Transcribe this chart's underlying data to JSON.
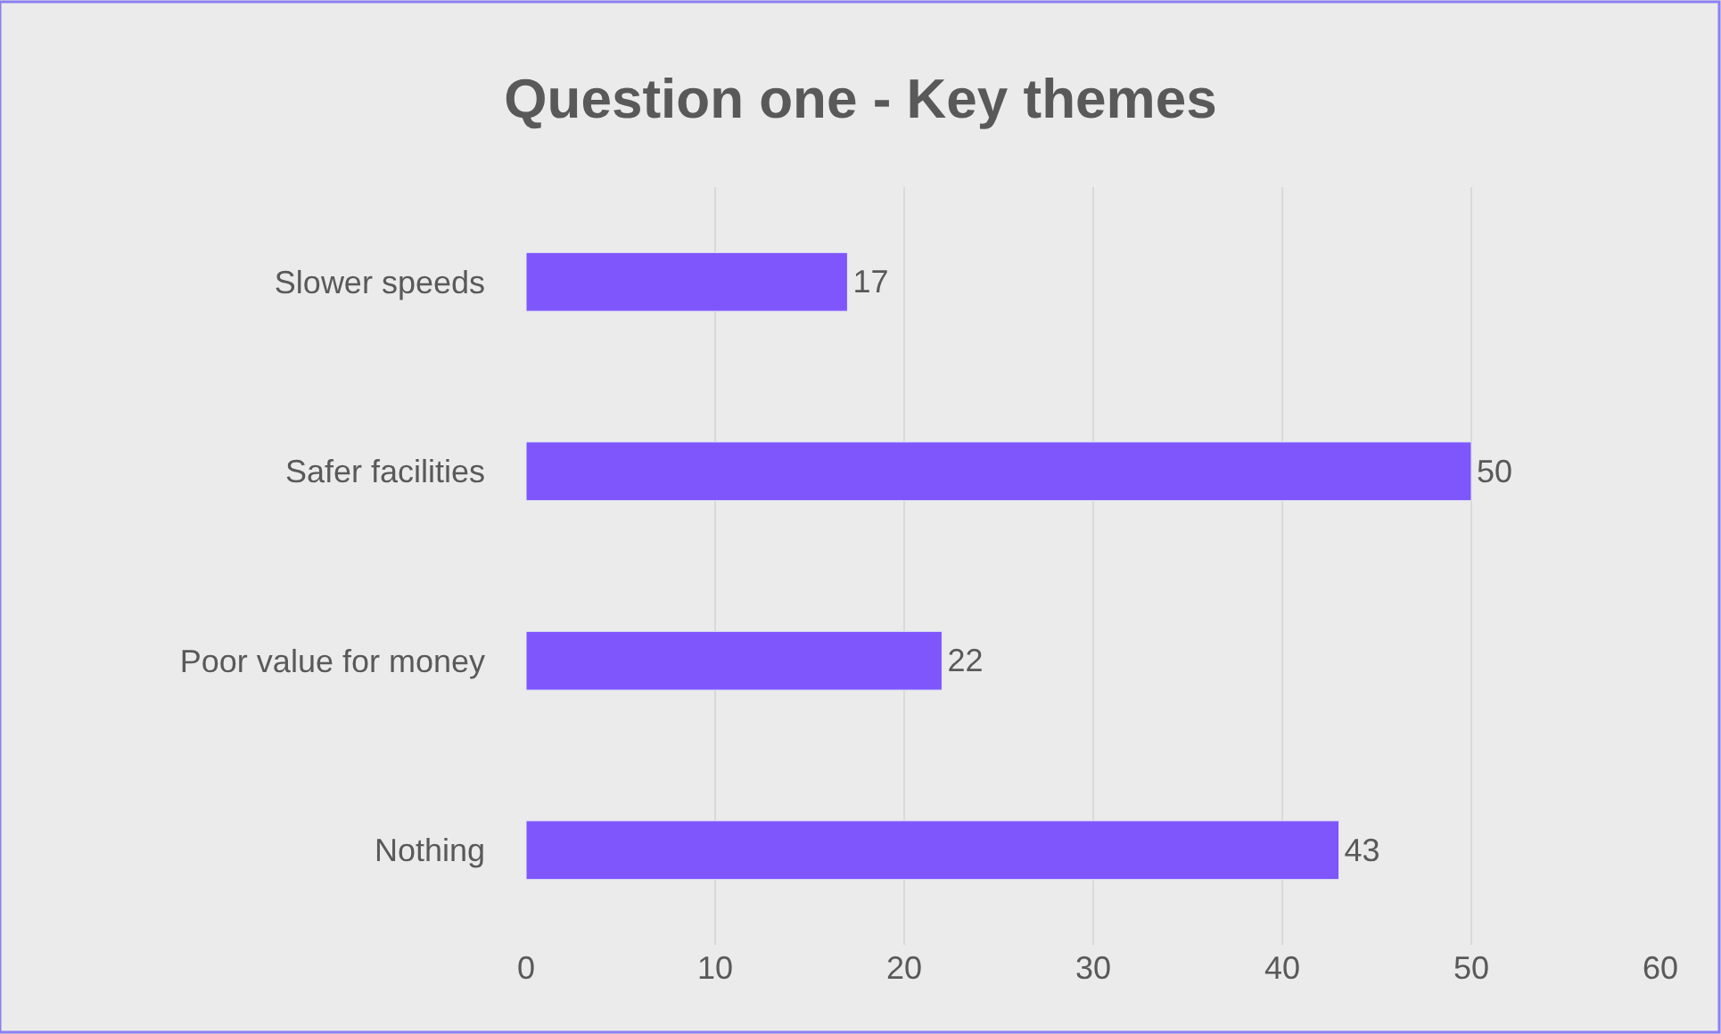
{
  "chart_data": {
    "type": "bar",
    "orientation": "horizontal",
    "title": "Question one - Key themes",
    "categories": [
      "Slower speeds",
      "Safer facilities",
      "Poor value for money",
      "Nothing"
    ],
    "values": [
      17,
      50,
      22,
      43
    ],
    "color": "#7f56fb",
    "xlim": [
      0,
      60
    ],
    "xticks": [
      0,
      10,
      20,
      30,
      40,
      50,
      60
    ],
    "grid": "x",
    "data_labels": true
  }
}
